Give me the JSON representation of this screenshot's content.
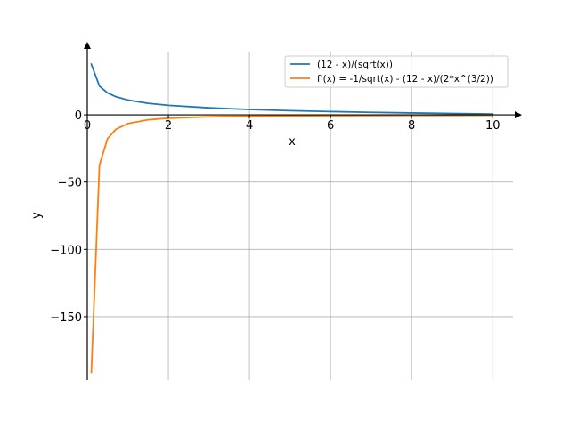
{
  "chart_data": {
    "type": "line",
    "xlabel": "x",
    "ylabel": "y",
    "xlim": [
      0,
      10.5
    ],
    "ylim": [
      -197,
      47
    ],
    "grid": true,
    "legend_position": "top-right",
    "x_ticks": [
      0,
      2,
      4,
      6,
      8,
      10
    ],
    "x_tick_labels": [
      "0",
      "2",
      "4",
      "6",
      "8",
      "10"
    ],
    "y_ticks": [
      0,
      -50,
      -100,
      -150
    ],
    "y_tick_labels": [
      "0",
      "−50",
      "−100",
      "−150"
    ],
    "series": [
      {
        "name": "(12 - x)/(sqrt(x))",
        "color": "#1f77b4",
        "x": [
          0.1,
          0.3,
          0.5,
          0.7,
          1.0,
          1.5,
          2.0,
          3.0,
          4.0,
          5.0,
          6.0,
          7.0,
          8.0,
          9.0,
          10.0
        ],
        "y": [
          37.63,
          21.36,
          16.26,
          13.51,
          11.0,
          8.57,
          7.07,
          5.2,
          4.0,
          3.13,
          2.45,
          1.89,
          1.41,
          1.0,
          0.63
        ]
      },
      {
        "name": "f'(x) = -1/sqrt(x) - (12 - x)/(2*x^(3/2))",
        "color": "#ff7f0e",
        "x": [
          0.1,
          0.3,
          0.5,
          0.7,
          1.0,
          1.5,
          2.0,
          3.0,
          4.0,
          5.0,
          6.0,
          7.0,
          8.0,
          9.0,
          10.0
        ],
        "y": [
          -191.3,
          -37.43,
          -17.68,
          -10.85,
          -6.5,
          -3.67,
          -2.47,
          -1.44,
          -1.0,
          -0.76,
          -0.61,
          -0.51,
          -0.44,
          -0.39,
          -0.35
        ]
      }
    ]
  }
}
